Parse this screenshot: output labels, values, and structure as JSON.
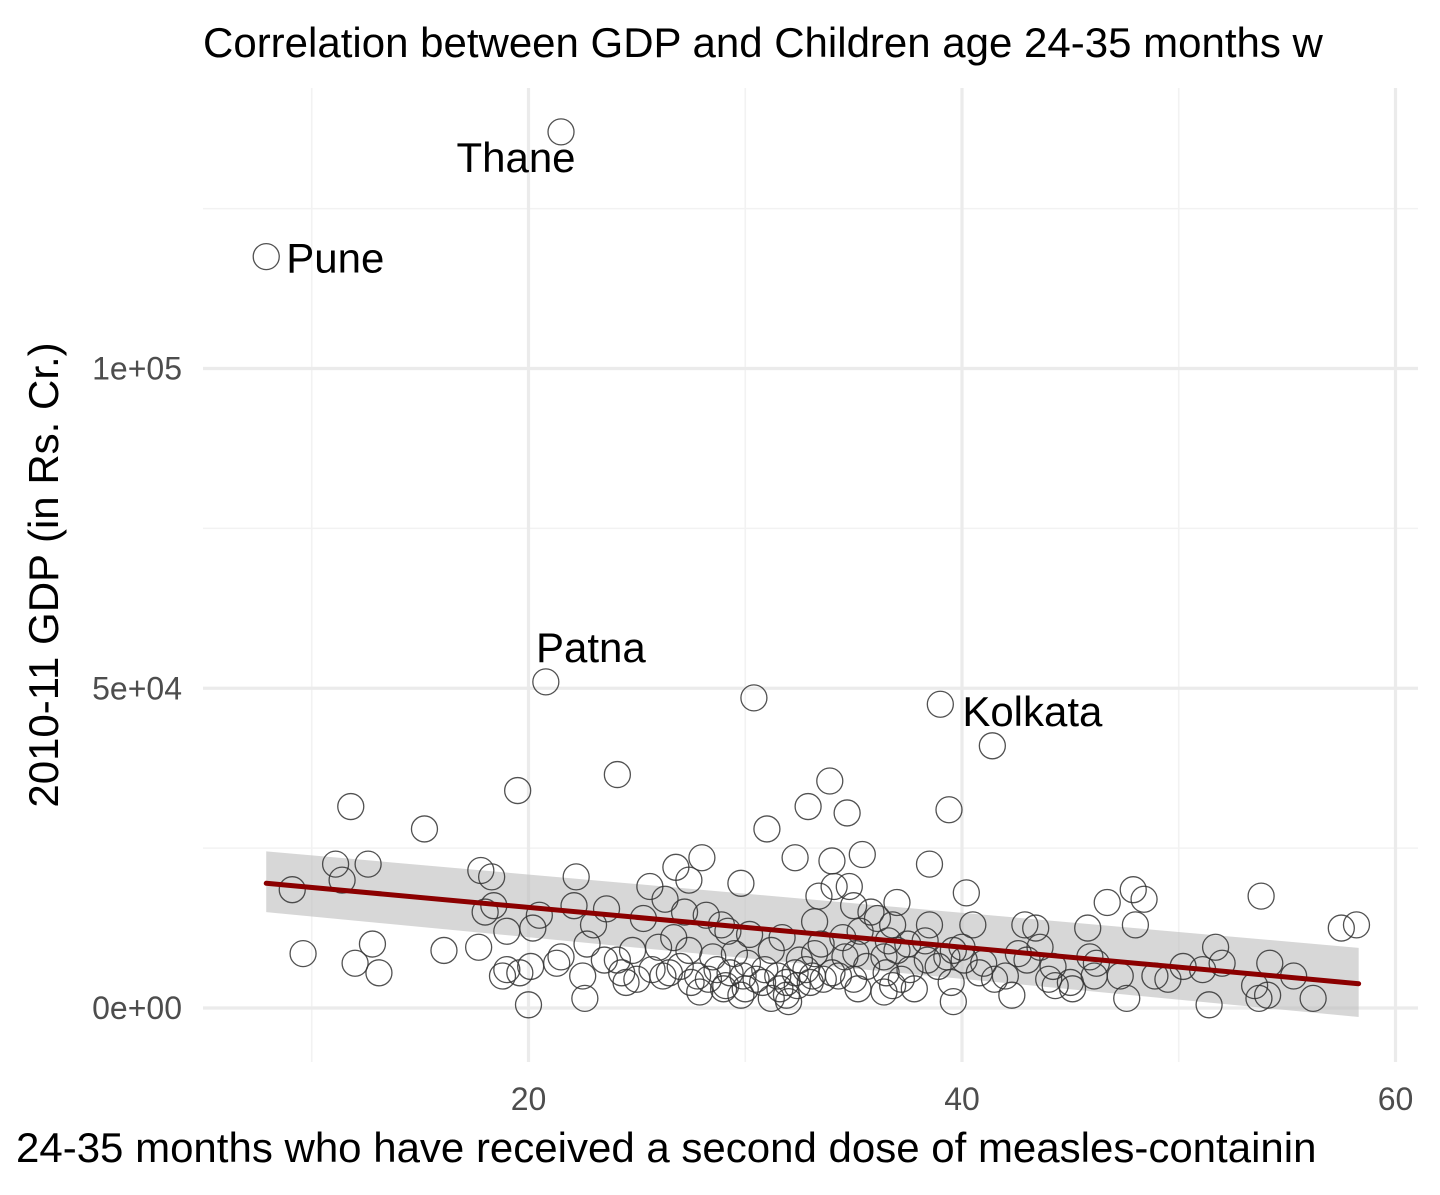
{
  "chart_data": {
    "type": "scatter",
    "title": "Correlation between GDP and Children age 24-35 months w",
    "xlabel": "24-35 months who have received a second dose of measles-containin",
    "ylabel": "2010-11 GDP (in Rs. Cr.)",
    "xlim": [
      -5,
      62
    ],
    "ylim": [
      -8000,
      137000
    ],
    "x_ticks": [
      {
        "value": 20,
        "label": "20"
      },
      {
        "value": 40,
        "label": "40"
      },
      {
        "value": 60,
        "label": "60"
      }
    ],
    "y_ticks": [
      {
        "value": 0,
        "label": "0e+00"
      },
      {
        "value": 50000,
        "label": "5e+04"
      },
      {
        "value": 100000,
        "label": "1e+05"
      }
    ],
    "x_minor": [
      10,
      30,
      50
    ],
    "y_minor": [
      25000,
      75000,
      125000
    ],
    "grid": true,
    "point_style": "hollow circle",
    "fit": {
      "method": "linear regression with confidence band",
      "color": "#8b0000",
      "band_color": "#bdbdbd",
      "x": [
        7.9,
        58.3
      ],
      "y": [
        19500,
        3800
      ],
      "band_lower": [
        15000,
        -1400
      ],
      "band_upper": [
        24500,
        9400
      ]
    },
    "labels": [
      {
        "text": "Thane",
        "x": 21.5,
        "y": 137000
      },
      {
        "text": "Pune",
        "x": 7.9,
        "y": 117500
      },
      {
        "text": "Patna",
        "x": 20.8,
        "y": 51000
      },
      {
        "text": "Kolkata",
        "x": 39.0,
        "y": 47500
      }
    ],
    "points": [
      [
        21.5,
        137000
      ],
      [
        7.9,
        117500
      ],
      [
        20.8,
        51000
      ],
      [
        30.4,
        48500
      ],
      [
        39.0,
        47500
      ],
      [
        41.4,
        41000
      ],
      [
        24.1,
        36500
      ],
      [
        33.9,
        35500
      ],
      [
        19.5,
        34000
      ],
      [
        11.8,
        31500
      ],
      [
        39.4,
        31000
      ],
      [
        34.7,
        30500
      ],
      [
        32.9,
        31500
      ],
      [
        15.2,
        28000
      ],
      [
        31.0,
        28000
      ],
      [
        28.0,
        23500
      ],
      [
        35.4,
        24000
      ],
      [
        32.3,
        23500
      ],
      [
        34.0,
        23000
      ],
      [
        38.5,
        22500
      ],
      [
        11.1,
        22500
      ],
      [
        12.6,
        22500
      ],
      [
        26.8,
        22000
      ],
      [
        17.8,
        21500
      ],
      [
        18.3,
        20500
      ],
      [
        27.4,
        20000
      ],
      [
        22.2,
        20500
      ],
      [
        29.8,
        19500
      ],
      [
        11.4,
        20000
      ],
      [
        25.6,
        19000
      ],
      [
        34.1,
        19000
      ],
      [
        34.8,
        19000
      ],
      [
        9.1,
        18500
      ],
      [
        40.2,
        18000
      ],
      [
        47.9,
        18500
      ],
      [
        48.4,
        17000
      ],
      [
        53.8,
        17500
      ],
      [
        46.7,
        16500
      ],
      [
        26.3,
        17000
      ],
      [
        33.4,
        17500
      ],
      [
        18.4,
        16000
      ],
      [
        22.1,
        16000
      ],
      [
        23.6,
        15500
      ],
      [
        27.2,
        15000
      ],
      [
        28.2,
        14500
      ],
      [
        35.0,
        16000
      ],
      [
        35.8,
        15000
      ],
      [
        36.1,
        14000
      ],
      [
        20.5,
        14500
      ],
      [
        25.3,
        14000
      ],
      [
        33.2,
        13500
      ],
      [
        36.8,
        13000
      ],
      [
        37.0,
        16500
      ],
      [
        38.5,
        13000
      ],
      [
        40.5,
        13000
      ],
      [
        42.9,
        13000
      ],
      [
        43.4,
        12500
      ],
      [
        45.8,
        12500
      ],
      [
        48.0,
        13000
      ],
      [
        57.5,
        12500
      ],
      [
        58.2,
        13000
      ],
      [
        18.0,
        15000
      ],
      [
        19.0,
        12000
      ],
      [
        20.2,
        12500
      ],
      [
        23.0,
        13000
      ],
      [
        26.7,
        11000
      ],
      [
        28.9,
        13000
      ],
      [
        29.2,
        12000
      ],
      [
        30.2,
        11500
      ],
      [
        31.7,
        11000
      ],
      [
        33.5,
        10000
      ],
      [
        34.5,
        11000
      ],
      [
        35.3,
        12000
      ],
      [
        36.6,
        10500
      ],
      [
        37.5,
        10000
      ],
      [
        38.3,
        10500
      ],
      [
        39.6,
        9000
      ],
      [
        40.0,
        9500
      ],
      [
        42.6,
        8500
      ],
      [
        43.6,
        9500
      ],
      [
        45.9,
        8000
      ],
      [
        51.7,
        9500
      ],
      [
        12.8,
        10000
      ],
      [
        16.1,
        9000
      ],
      [
        17.7,
        9500
      ],
      [
        9.6,
        8500
      ],
      [
        21.5,
        8000
      ],
      [
        22.7,
        10000
      ],
      [
        24.8,
        9000
      ],
      [
        24.1,
        7500
      ],
      [
        26.0,
        9500
      ],
      [
        27.4,
        9000
      ],
      [
        28.5,
        8000
      ],
      [
        29.5,
        8500
      ],
      [
        30.1,
        7000
      ],
      [
        31.2,
        9000
      ],
      [
        32.5,
        7500
      ],
      [
        33.2,
        8500
      ],
      [
        34.6,
        8000
      ],
      [
        35.1,
        8500
      ],
      [
        36.4,
        8000
      ],
      [
        37.0,
        9000
      ],
      [
        38.4,
        7500
      ],
      [
        39.3,
        8000
      ],
      [
        40.1,
        7500
      ],
      [
        41.0,
        7000
      ],
      [
        43.0,
        7500
      ],
      [
        44.2,
        6500
      ],
      [
        46.2,
        7000
      ],
      [
        48.9,
        5000
      ],
      [
        50.2,
        6500
      ],
      [
        51.1,
        6000
      ],
      [
        52.0,
        7000
      ],
      [
        54.2,
        7000
      ],
      [
        55.3,
        5000
      ],
      [
        12.0,
        7000
      ],
      [
        13.1,
        5500
      ],
      [
        19.0,
        6000
      ],
      [
        20.1,
        6500
      ],
      [
        21.3,
        7000
      ],
      [
        22.5,
        5000
      ],
      [
        23.5,
        7500
      ],
      [
        24.3,
        5500
      ],
      [
        25.0,
        4500
      ],
      [
        25.7,
        6000
      ],
      [
        26.5,
        5500
      ],
      [
        27.0,
        6500
      ],
      [
        27.8,
        5000
      ],
      [
        28.3,
        4500
      ],
      [
        28.7,
        6000
      ],
      [
        29.3,
        5500
      ],
      [
        29.9,
        5000
      ],
      [
        30.5,
        4500
      ],
      [
        30.9,
        6000
      ],
      [
        31.5,
        5000
      ],
      [
        31.9,
        4000
      ],
      [
        32.3,
        5500
      ],
      [
        32.8,
        6000
      ],
      [
        33.1,
        5000
      ],
      [
        33.6,
        4500
      ],
      [
        34.0,
        5500
      ],
      [
        34.3,
        5000
      ],
      [
        35.0,
        4500
      ],
      [
        35.6,
        6500
      ],
      [
        36.5,
        5500
      ],
      [
        37.2,
        4500
      ],
      [
        37.6,
        6000
      ],
      [
        38.9,
        6500
      ],
      [
        40.8,
        5500
      ],
      [
        42.0,
        5000
      ],
      [
        44.0,
        4500
      ],
      [
        45.0,
        4000
      ],
      [
        47.3,
        5000
      ],
      [
        49.5,
        4500
      ],
      [
        53.5,
        3500
      ],
      [
        18.8,
        5000
      ],
      [
        19.6,
        5500
      ],
      [
        24.5,
        4000
      ],
      [
        26.2,
        5000
      ],
      [
        27.5,
        4000
      ],
      [
        29.1,
        3500
      ],
      [
        30.0,
        3000
      ],
      [
        30.8,
        4000
      ],
      [
        31.6,
        3000
      ],
      [
        32.4,
        3500
      ],
      [
        33.0,
        4000
      ],
      [
        35.2,
        3000
      ],
      [
        36.8,
        3500
      ],
      [
        37.8,
        3000
      ],
      [
        39.5,
        4000
      ],
      [
        41.5,
        4500
      ],
      [
        44.3,
        3500
      ],
      [
        45.1,
        3000
      ],
      [
        46.1,
        5000
      ],
      [
        20.0,
        500
      ],
      [
        22.6,
        1500
      ],
      [
        27.9,
        2500
      ],
      [
        29.8,
        2000
      ],
      [
        31.2,
        1500
      ],
      [
        32.0,
        1000
      ],
      [
        36.4,
        2500
      ],
      [
        39.6,
        1000
      ],
      [
        42.3,
        2000
      ],
      [
        47.6,
        1500
      ],
      [
        51.4,
        500
      ],
      [
        54.1,
        2000
      ],
      [
        56.2,
        1500
      ],
      [
        53.7,
        1500
      ],
      [
        31.9,
        2000
      ],
      [
        29.0,
        3000
      ]
    ]
  }
}
